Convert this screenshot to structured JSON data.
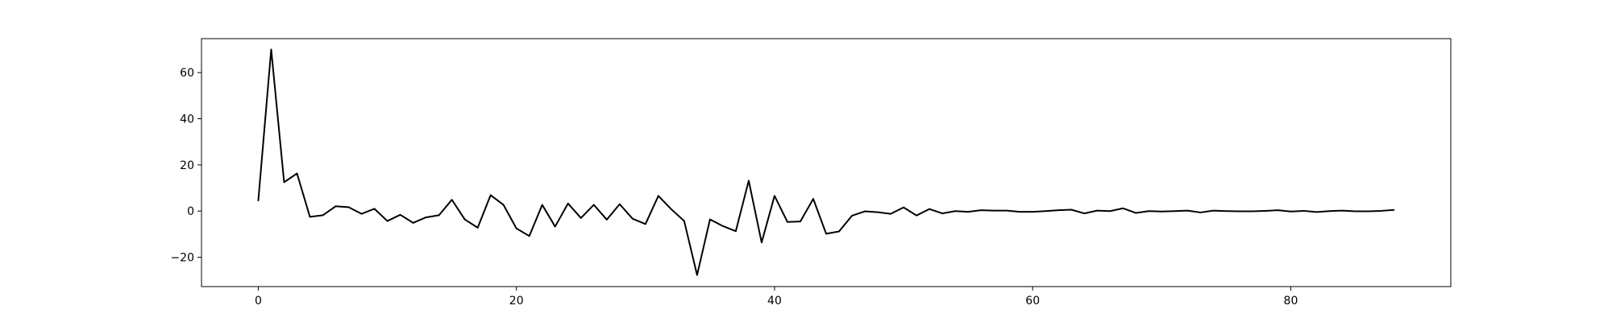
{
  "chart_data": {
    "type": "line",
    "title": "",
    "xlabel": "",
    "ylabel": "",
    "xlim": [
      -4.4,
      92.4
    ],
    "ylim": [
      -32.7,
      74.7
    ],
    "grid": false,
    "legend": "none",
    "line_color": "#000000",
    "x_ticks": [
      0,
      20,
      40,
      60,
      80
    ],
    "x_tick_labels": [
      "0",
      "20",
      "40",
      "60",
      "80"
    ],
    "y_ticks": [
      -20,
      0,
      20,
      40,
      60
    ],
    "y_tick_labels": [
      "−20",
      "0",
      "20",
      "40",
      "60"
    ],
    "series": [
      {
        "x": [
          0,
          1,
          2,
          3,
          4,
          5,
          6,
          7,
          8,
          9,
          10,
          11,
          12,
          13,
          14,
          15,
          16,
          17,
          18,
          19,
          20,
          21,
          22,
          23,
          24,
          25,
          26,
          27,
          28,
          29,
          30,
          31,
          32,
          33,
          34,
          35,
          36,
          37,
          38,
          39,
          40,
          41,
          42,
          43,
          44,
          45,
          46,
          47,
          48,
          49,
          50,
          51,
          52,
          53,
          54,
          55,
          56,
          57,
          58,
          59,
          60,
          61,
          62,
          63,
          64,
          65,
          66,
          67,
          68,
          69,
          70,
          71,
          72,
          73,
          74,
          75,
          76,
          77,
          78,
          79,
          80,
          81,
          82,
          83,
          84,
          85,
          86,
          87,
          88
        ],
        "values": [
          4.5,
          70,
          12.5,
          16.3,
          -2.5,
          -1.8,
          2.1,
          1.7,
          -1.2,
          1,
          -4.3,
          -1.6,
          -5.1,
          -2.7,
          -1.8,
          4.9,
          -3.6,
          -7.2,
          6.9,
          2.7,
          -7.5,
          -10.8,
          2.7,
          -6.7,
          3.3,
          -3,
          2.7,
          -3.7,
          3,
          -3.3,
          -5.6,
          6.6,
          0.8,
          -4.3,
          -27.7,
          -3.6,
          -6.5,
          -8.7,
          13.2,
          -13.6,
          6.6,
          -4.7,
          -4.5,
          5.3,
          -9.8,
          -8.8,
          -2,
          -0.1,
          -0.5,
          -1.2,
          1.6,
          -1.9,
          0.9,
          -1,
          0,
          -0.3,
          0.4,
          0.2,
          0.2,
          -0.3,
          -0.3,
          0,
          0.4,
          0.6,
          -1,
          0.2,
          0,
          1.2,
          -0.8,
          0,
          -0.2,
          0,
          0.2,
          -0.6,
          0.2,
          0,
          -0.1,
          -0.1,
          0.1,
          0.4,
          -0.2,
          0.1,
          -0.4,
          0,
          0.2,
          -0.1,
          -0.1,
          0.1,
          0.5
        ]
      }
    ]
  }
}
